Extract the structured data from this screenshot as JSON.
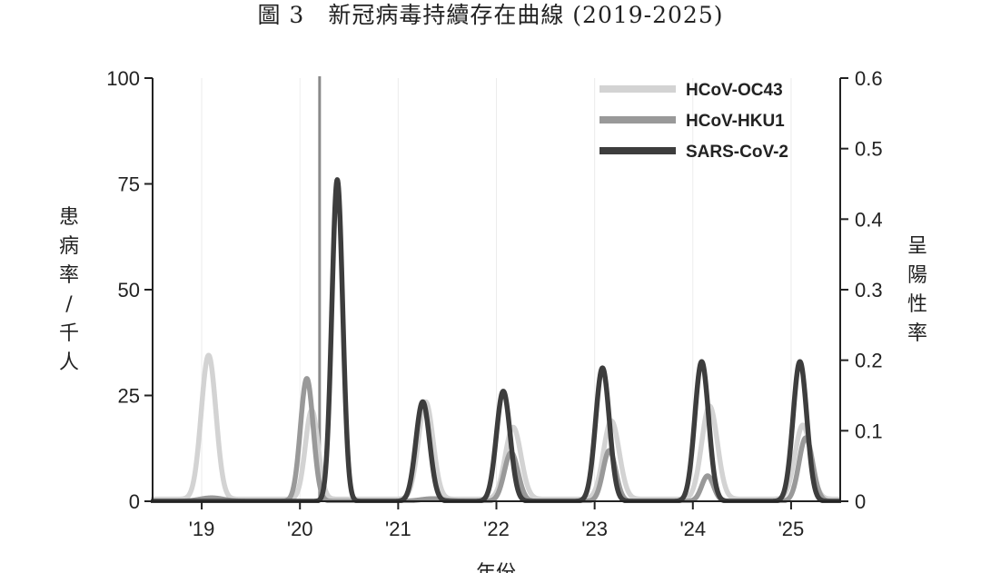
{
  "chart_data": {
    "type": "line",
    "title": "圖 3　新冠病毒持續存在曲線 (2019-2025)",
    "xlabel": "年份",
    "ylabel_left": "患病率 / 千人",
    "ylabel_right": "呈陽性率",
    "ylim_left": [
      0,
      100
    ],
    "ylim_right": [
      0,
      0.6
    ],
    "yticks_left": [
      "0",
      "25",
      "50",
      "75",
      "100"
    ],
    "yticks_right": [
      "0",
      "0.1",
      "0.2",
      "0.3",
      "0.4",
      "0.5",
      "0.6"
    ],
    "xlim": [
      2018.5,
      2025.5
    ],
    "xticks": [
      {
        "value": 2019,
        "label": "'19"
      },
      {
        "value": 2020,
        "label": "'20"
      },
      {
        "value": 2021,
        "label": "'21"
      },
      {
        "value": 2022,
        "label": "'22"
      },
      {
        "value": 2023,
        "label": "'23"
      },
      {
        "value": 2024,
        "label": "'24"
      },
      {
        "value": 2025,
        "label": "'25"
      }
    ],
    "grid": "vertical",
    "legend_position": "top-right",
    "marker_line_x": 2020.2,
    "series": [
      {
        "name": "HCoV-OC43",
        "color": "#d3d3d3",
        "baseline": 0.5,
        "peaks": [
          {
            "x": 2019.07,
            "y": 34,
            "width": 0.075
          },
          {
            "x": 2020.12,
            "y": 21,
            "width": 0.065
          },
          {
            "x": 2021.28,
            "y": 23,
            "width": 0.075
          },
          {
            "x": 2022.17,
            "y": 17,
            "width": 0.08
          },
          {
            "x": 2023.17,
            "y": 18.5,
            "width": 0.08
          },
          {
            "x": 2024.17,
            "y": 22,
            "width": 0.08
          },
          {
            "x": 2025.12,
            "y": 17.5,
            "width": 0.08
          }
        ]
      },
      {
        "name": "HCoV-HKU1",
        "color": "#999999",
        "baseline": 0,
        "peaks": [
          {
            "x": 2019.1,
            "y": 0.8,
            "width": 0.12
          },
          {
            "x": 2020.07,
            "y": 29,
            "width": 0.065
          },
          {
            "x": 2021.35,
            "y": 0.6,
            "width": 0.12
          },
          {
            "x": 2022.15,
            "y": 11.5,
            "width": 0.07
          },
          {
            "x": 2023.15,
            "y": 12,
            "width": 0.065
          },
          {
            "x": 2024.15,
            "y": 6,
            "width": 0.06
          },
          {
            "x": 2025.15,
            "y": 15,
            "width": 0.07
          }
        ]
      },
      {
        "name": "SARS-CoV-2",
        "color": "#3d3d3d",
        "baseline": 0,
        "peaks": [
          {
            "x": 2020.38,
            "y": 76,
            "width": 0.055
          },
          {
            "x": 2021.25,
            "y": 23.5,
            "width": 0.07
          },
          {
            "x": 2022.07,
            "y": 26,
            "width": 0.07
          },
          {
            "x": 2023.08,
            "y": 31.5,
            "width": 0.07
          },
          {
            "x": 2024.09,
            "y": 33,
            "width": 0.07
          },
          {
            "x": 2025.09,
            "y": 33,
            "width": 0.07
          }
        ]
      }
    ]
  }
}
